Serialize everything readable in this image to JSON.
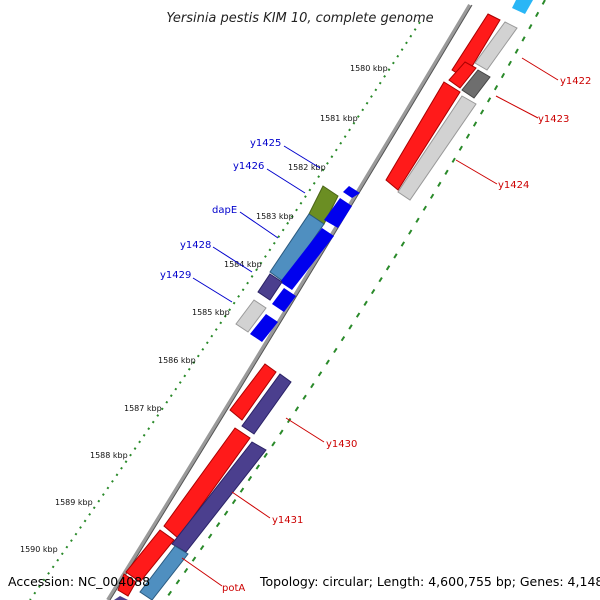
{
  "title": "Yersinia pestis KIM 10, complete genome",
  "accession": "Accession: NC_004088",
  "topology": "Topology: circular; Length: 4,600,755 bp; Genes: 4,148",
  "colors": {
    "backbone": "#888888",
    "ruler_dots": "#2a8a2a",
    "forward_strand": "#ff0000",
    "reverse_strand": "#0000ff",
    "highlight_label_forward": "#cc0000",
    "highlight_label_reverse": "#0000cc",
    "pseudo_gray": "#c8c8c8",
    "dark_gray": "#707070",
    "steel_blue": "#4f8fc0",
    "olive": "#6b8e23",
    "slate_purple": "#483d8b",
    "sky": "#29b6f6"
  },
  "ticks": [
    {
      "label": "1580 kbp"
    },
    {
      "label": "1581 kbp"
    },
    {
      "label": "1582 kbp"
    },
    {
      "label": "1583 kbp"
    },
    {
      "label": "1584 kbp"
    },
    {
      "label": "1585 kbp"
    },
    {
      "label": "1586 kbp"
    },
    {
      "label": "1587 kbp"
    },
    {
      "label": "1588 kbp"
    },
    {
      "label": "1589 kbp"
    },
    {
      "label": "1590 kbp"
    }
  ],
  "gene_labels_reverse": [
    "y1425",
    "y1426",
    "dapE",
    "y1428",
    "y1429"
  ],
  "gene_labels_forward": [
    "y1422",
    "y1423",
    "y1424",
    "y1430",
    "y1431",
    "potA"
  ]
}
